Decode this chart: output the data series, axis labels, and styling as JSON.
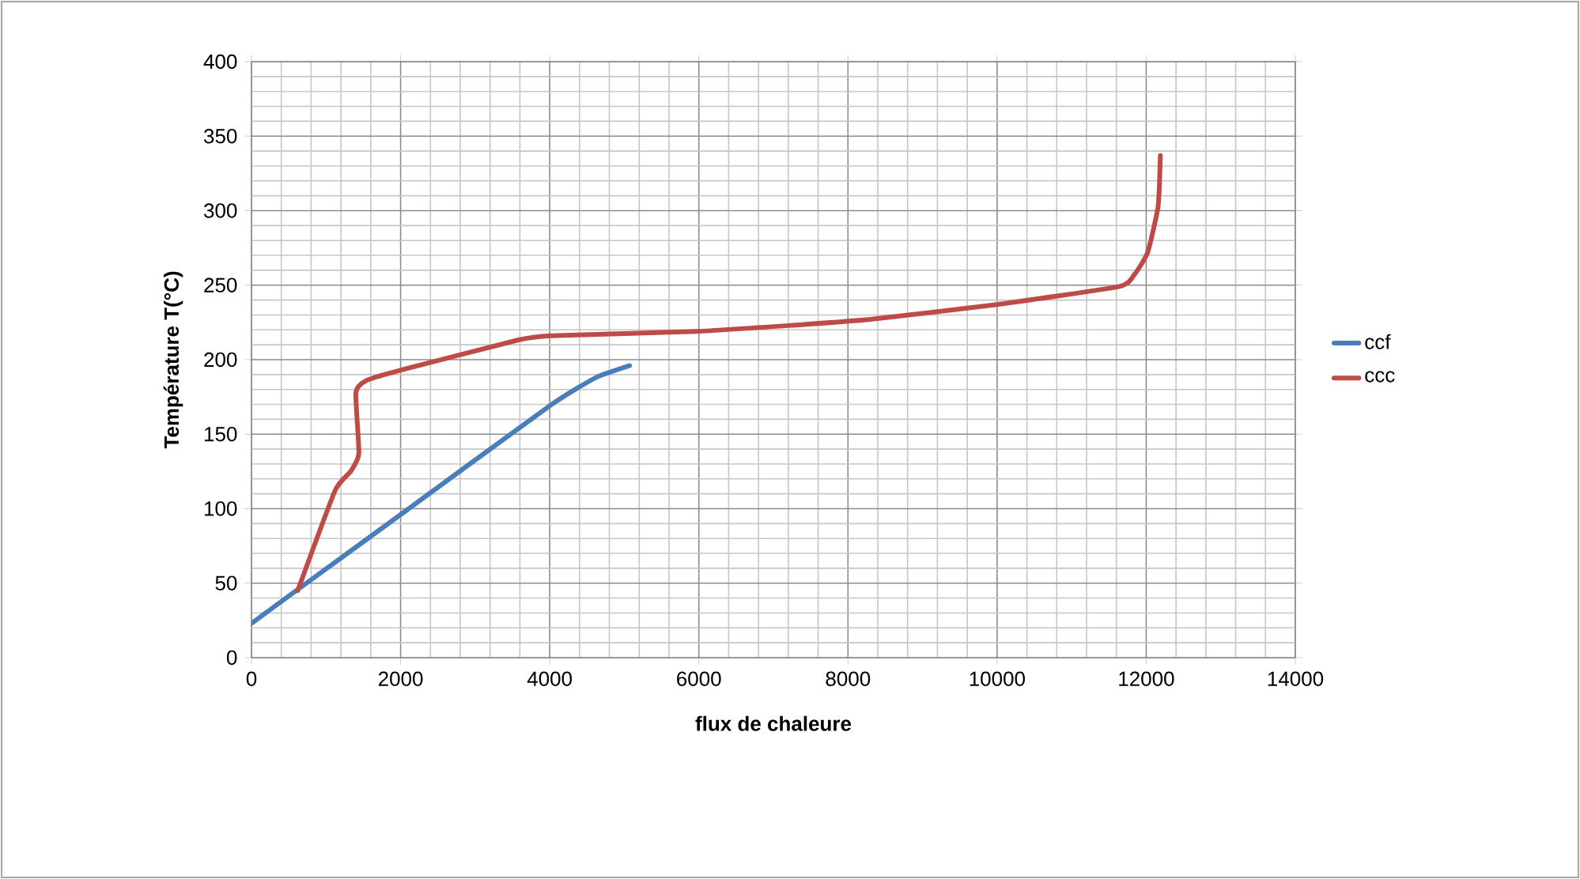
{
  "chart_data": {
    "type": "line",
    "xlabel": "flux de chaleure",
    "ylabel": "Température T(°C)",
    "xlim": [
      0,
      14000
    ],
    "ylim": [
      0,
      400
    ],
    "xticks": [
      0,
      2000,
      4000,
      6000,
      8000,
      10000,
      12000,
      14000
    ],
    "yticks": [
      0,
      50,
      100,
      150,
      200,
      250,
      300,
      350,
      400
    ],
    "grid": true,
    "legend": "right",
    "series": [
      {
        "name": "ccf",
        "color": "#4a7ebb",
        "x": [
          0,
          600,
          2000,
          4000,
          4620,
          5070
        ],
        "values": [
          23,
          45,
          96,
          169,
          188,
          196
        ]
      },
      {
        "name": "ccc",
        "color": "#be4b48",
        "x": [
          620,
          1120,
          1330,
          1440,
          1400,
          1540,
          1930,
          3560,
          4020,
          5970,
          7240,
          8300,
          10000,
          11630,
          11840,
          12020,
          12160,
          12190
        ],
        "values": [
          45,
          112,
          125,
          137,
          178,
          186,
          192,
          213,
          216,
          219,
          223,
          227,
          237,
          249,
          257,
          272,
          303,
          337
        ]
      }
    ]
  }
}
